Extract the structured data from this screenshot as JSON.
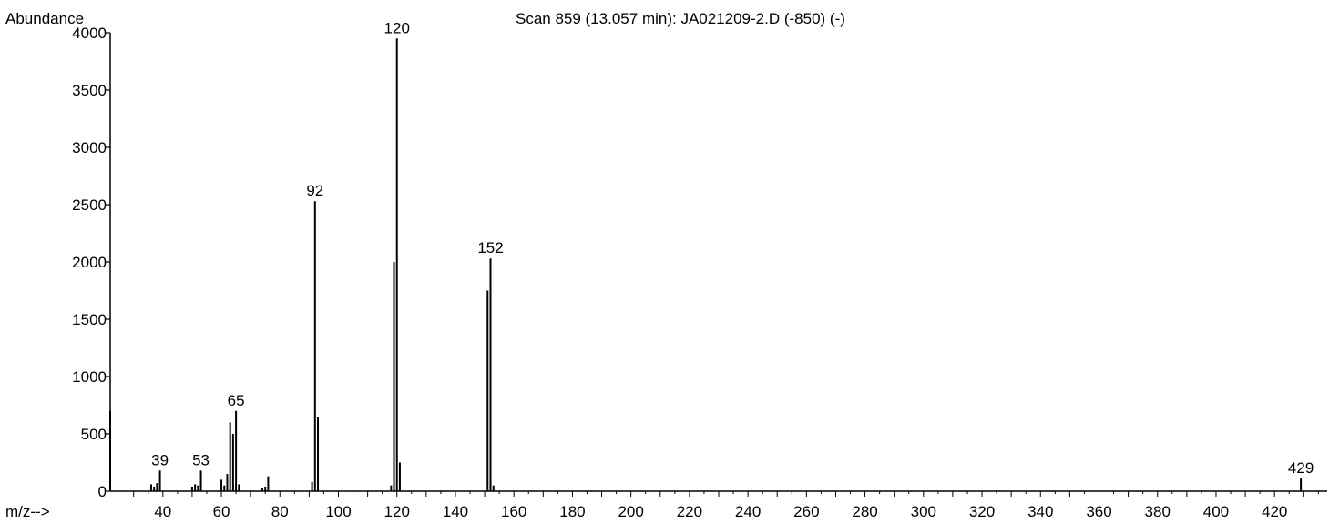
{
  "chart_data": {
    "type": "bar",
    "title": "Scan 859 (13.057 min): JA021209-2.D (-850) (-)",
    "ylabel": "Abundance",
    "xlabel": "m/z-->",
    "xlim": [
      22,
      438
    ],
    "ylim": [
      0,
      4000
    ],
    "x_ticks": [
      40,
      60,
      80,
      100,
      120,
      140,
      160,
      180,
      200,
      220,
      240,
      260,
      280,
      300,
      320,
      340,
      360,
      380,
      400,
      420
    ],
    "y_ticks": [
      0,
      500,
      1000,
      1500,
      2000,
      2500,
      3000,
      3500,
      4000
    ],
    "grid": false,
    "series": [
      {
        "x": [
          22,
          36,
          37,
          38,
          39,
          50,
          51,
          52,
          53,
          60,
          61,
          62,
          63,
          64,
          65,
          66,
          74,
          75,
          76,
          91,
          92,
          93,
          118,
          119,
          120,
          121,
          151,
          152,
          153,
          429
        ],
        "values": [
          700,
          60,
          40,
          70,
          180,
          40,
          60,
          50,
          180,
          100,
          50,
          150,
          600,
          500,
          700,
          60,
          30,
          40,
          130,
          80,
          2530,
          650,
          50,
          2000,
          3950,
          250,
          1750,
          2030,
          50,
          110
        ]
      }
    ],
    "peak_labels": [
      {
        "x": 39,
        "y": 180,
        "text": "39"
      },
      {
        "x": 53,
        "y": 180,
        "text": "53"
      },
      {
        "x": 65,
        "y": 700,
        "text": "65"
      },
      {
        "x": 92,
        "y": 2530,
        "text": "92"
      },
      {
        "x": 120,
        "y": 3950,
        "text": "120"
      },
      {
        "x": 152,
        "y": 2030,
        "text": "152"
      },
      {
        "x": 429,
        "y": 110,
        "text": "429"
      }
    ]
  }
}
